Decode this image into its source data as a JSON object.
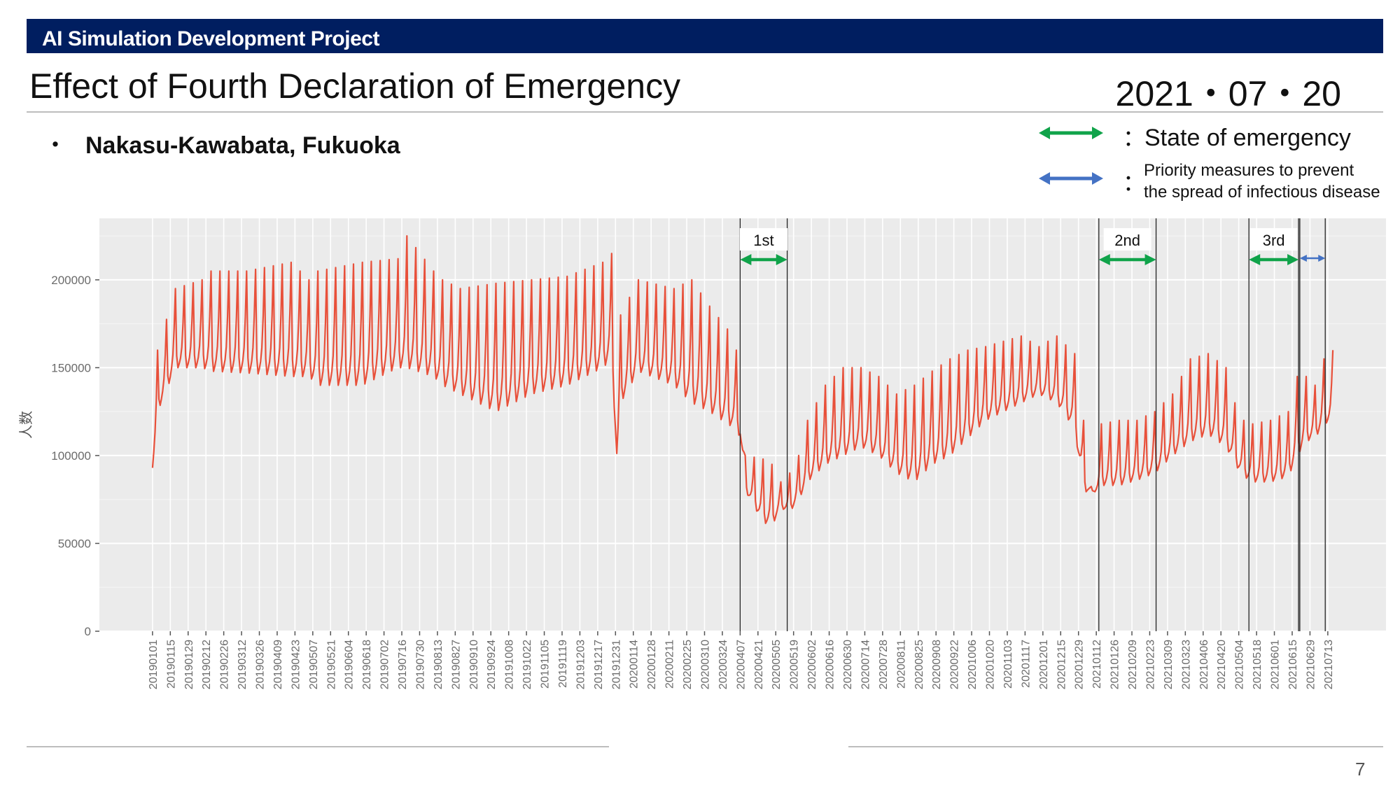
{
  "header": {
    "banner_title": "AI Simulation Development Project",
    "title": "Effect of Fourth Declaration of Emergency",
    "date": "2021・07・20"
  },
  "subtitle": {
    "bullet": "・",
    "location": "Nakasu-Kawabata, Fukuoka"
  },
  "legend": {
    "colon": "：",
    "state_of_emergency": "State of emergency",
    "priority_measures_line1": "Priority measures to prevent",
    "priority_measures_line2": "the spread of infectious disease",
    "soe_color": "#10a34a",
    "priority_color": "#4472c4"
  },
  "footer": {
    "page_number": "7"
  },
  "chart_data": {
    "type": "line",
    "ylabel": "人数",
    "xlabel": "",
    "ylim": [
      0,
      235000
    ],
    "yticks": [
      0,
      50000,
      100000,
      150000,
      200000
    ],
    "ytick_labels": [
      "0",
      "50000",
      "100000",
      "150000",
      "200000"
    ],
    "x_start": "2019-01-01",
    "x_end": "2021-07-17",
    "x_tick_labels": [
      "20190101",
      "20190115",
      "20190129",
      "20190212",
      "20190226",
      "20190312",
      "20190326",
      "20190409",
      "20190423",
      "20190507",
      "20190521",
      "20190604",
      "20190618",
      "20190702",
      "20190716",
      "20190730",
      "20190813",
      "20190827",
      "20190910",
      "20190924",
      "20191008",
      "20191022",
      "20191105",
      "20191119",
      "20191203",
      "20191217",
      "20191231",
      "20200114",
      "20200128",
      "20200211",
      "20200225",
      "20200310",
      "20200324",
      "20200407",
      "20200421",
      "20200505",
      "20200519",
      "20200602",
      "20200616",
      "20200630",
      "20200714",
      "20200728",
      "20200811",
      "20200825",
      "20200908",
      "20200922",
      "20201006",
      "20201020",
      "20201103",
      "20201117",
      "20201201",
      "20201215",
      "20201229",
      "20210112",
      "20210126",
      "20210209",
      "20210223",
      "20210309",
      "20210323",
      "20210406",
      "20210420",
      "20210504",
      "20210518",
      "20210601",
      "20210615",
      "20210629",
      "20210713"
    ],
    "line_color": "#e8503a",
    "grid": true,
    "series": [
      {
        "name": "",
        "x": [
          "2019-01-01",
          "2019-01-05",
          "2019-01-19",
          "2019-02-09",
          "2019-02-16",
          "2019-03-16",
          "2019-04-20",
          "2019-05-04",
          "2019-05-11",
          "2019-06-15",
          "2019-07-13",
          "2019-07-20",
          "2019-08-10",
          "2019-08-17",
          "2019-08-31",
          "2019-09-28",
          "2019-10-26",
          "2019-11-23",
          "2019-12-21",
          "2019-12-28",
          "2020-01-01",
          "2020-01-04",
          "2020-01-18",
          "2020-02-15",
          "2020-02-29",
          "2020-03-14",
          "2020-03-28",
          "2020-04-04",
          "2020-04-07",
          "2020-04-11",
          "2020-04-25",
          "2020-05-02",
          "2020-05-09",
          "2020-05-16",
          "2020-05-23",
          "2020-05-30",
          "2020-06-13",
          "2020-06-27",
          "2020-07-11",
          "2020-07-25",
          "2020-08-08",
          "2020-08-22",
          "2020-09-05",
          "2020-09-19",
          "2020-10-03",
          "2020-10-17",
          "2020-10-31",
          "2020-11-14",
          "2020-11-28",
          "2020-12-12",
          "2020-12-26",
          "2021-01-02",
          "2021-01-09",
          "2021-01-16",
          "2021-01-30",
          "2021-02-13",
          "2021-02-27",
          "2021-03-13",
          "2021-03-27",
          "2021-04-10",
          "2021-04-24",
          "2021-05-01",
          "2021-05-08",
          "2021-05-15",
          "2021-05-29",
          "2021-06-12",
          "2021-06-19",
          "2021-06-26",
          "2021-07-03",
          "2021-07-10",
          "2021-07-17"
        ],
        "weekend_peak": [
          93000,
          160000,
          195000,
          200000,
          205000,
          205000,
          210000,
          200000,
          205000,
          210000,
          212000,
          225000,
          205000,
          200000,
          195000,
          198000,
          200000,
          202000,
          210000,
          215000,
          110000,
          180000,
          200000,
          195000,
          200000,
          185000,
          172000,
          160000,
          155000,
          100000,
          98000,
          95000,
          85000,
          90000,
          100000,
          120000,
          140000,
          150000,
          150000,
          145000,
          135000,
          140000,
          148000,
          155000,
          160000,
          162000,
          165000,
          168000,
          162000,
          168000,
          158000,
          120000,
          80000,
          118000,
          120000,
          120000,
          125000,
          135000,
          155000,
          158000,
          150000,
          130000,
          120000,
          118000,
          120000,
          125000,
          145000,
          145000,
          140000,
          155000,
          160000
        ],
        "weekday_trough": [
          93000,
          125000,
          150000,
          150000,
          148000,
          147000,
          145000,
          145000,
          140000,
          140000,
          150000,
          150000,
          145000,
          140000,
          135000,
          125000,
          135000,
          140000,
          150000,
          155000,
          100000,
          130000,
          148000,
          140000,
          130000,
          125000,
          118000,
          115000,
          110000,
          80000,
          62000,
          60000,
          70000,
          68000,
          75000,
          85000,
          95000,
          100000,
          105000,
          100000,
          90000,
          85000,
          95000,
          100000,
          110000,
          120000,
          125000,
          130000,
          135000,
          130000,
          115000,
          80000,
          78000,
          83000,
          83000,
          86000,
          90000,
          100000,
          108000,
          112000,
          105000,
          95000,
          88000,
          85000,
          85000,
          88000,
          100000,
          108000,
          110000,
          118000,
          120000
        ]
      }
    ],
    "periods": [
      {
        "label": "1st",
        "type": "State of emergency",
        "start": "2020-04-07",
        "end": "2020-05-14"
      },
      {
        "label": "2nd",
        "type": "State of emergency",
        "start": "2021-01-14",
        "end": "2021-02-28"
      },
      {
        "label": "3rd",
        "type": "State of emergency",
        "start": "2021-05-12",
        "end": "2021-06-20"
      },
      {
        "label": "",
        "type": "Priority measures to prevent the spread of infectious disease",
        "start": "2021-06-21",
        "end": "2021-07-11"
      }
    ]
  }
}
